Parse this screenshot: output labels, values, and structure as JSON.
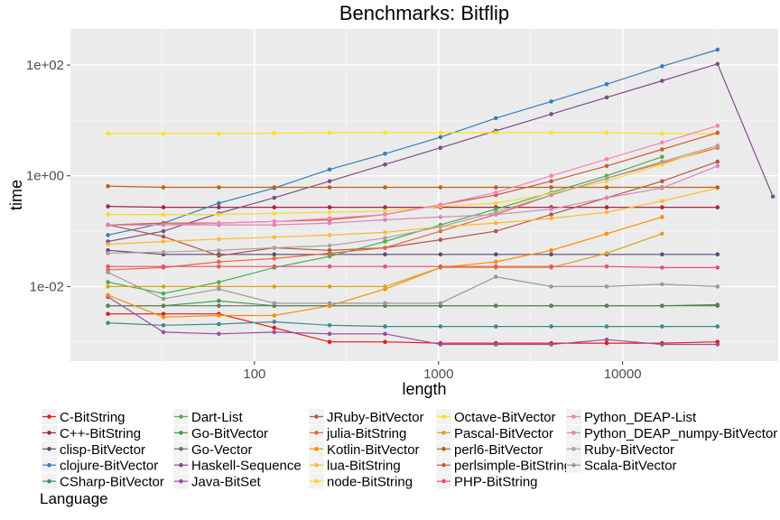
{
  "chart_data": {
    "type": "line",
    "title": "Benchmarks: Bitflip",
    "xlabel": "length",
    "ylabel": "time",
    "x_scale": "log10",
    "y_scale": "log10",
    "xlim": [
      10,
      70000
    ],
    "ylim": [
      0.00045,
      450
    ],
    "x_ticks": [
      100,
      1000,
      10000
    ],
    "x_tick_labels": [
      "100",
      "1000",
      "10000"
    ],
    "y_ticks": [
      0.01,
      1,
      100
    ],
    "y_tick_labels": [
      "1e-02",
      "1e+00",
      "1e+02"
    ],
    "grid": true,
    "legend_title": "Language",
    "legend_position": "bottom",
    "series": [
      {
        "name": "C-BitString",
        "color": "#E41A1C",
        "x": [
          16,
          32,
          64,
          128,
          256,
          512,
          1024,
          2048,
          4096,
          8192,
          16384,
          32768
        ],
        "values": [
          0.0032,
          0.0032,
          0.0032,
          0.0018,
          0.001,
          0.001,
          0.00095,
          0.00095,
          0.00095,
          0.00095,
          0.00095,
          0.001
        ]
      },
      {
        "name": "C++-BitString",
        "color": "#9E2A42",
        "x": [
          16,
          32,
          64,
          128,
          256,
          512,
          1024,
          2048,
          4096,
          8192,
          16384,
          32768
        ],
        "values": [
          0.28,
          0.27,
          0.27,
          0.27,
          0.27,
          0.27,
          0.27,
          0.27,
          0.27,
          0.27,
          0.27,
          0.27
        ]
      },
      {
        "name": "clisp-BitVector",
        "color": "#5E4B73",
        "x": [
          16,
          32,
          64,
          128,
          256,
          512,
          1024,
          2048,
          4096,
          8192,
          16384,
          32768
        ],
        "values": [
          0.045,
          0.038,
          0.038,
          0.038,
          0.038,
          0.038,
          0.038,
          0.038,
          0.038,
          0.038,
          0.038,
          0.038
        ]
      },
      {
        "name": "clojure-BitVector",
        "color": "#377EB8",
        "x": [
          16,
          32,
          64,
          128,
          256,
          512,
          1024,
          2048,
          4096,
          8192,
          16384,
          32768
        ],
        "values": [
          0.085,
          0.14,
          0.32,
          0.6,
          1.3,
          2.5,
          5.0,
          11,
          22,
          45,
          95,
          190
        ]
      },
      {
        "name": "CSharp-BitVector",
        "color": "#3B8C8C",
        "x": [
          16,
          32,
          64,
          128,
          256,
          512,
          1024,
          2048,
          4096,
          8192,
          16384,
          32768
        ],
        "values": [
          0.0022,
          0.002,
          0.0021,
          0.0023,
          0.002,
          0.0019,
          0.0019,
          0.0019,
          0.0019,
          0.0019,
          0.0019,
          0.0019
        ]
      },
      {
        "name": "Dart-List",
        "color": "#4DAF4A",
        "x": [
          16,
          32,
          64,
          128,
          256,
          512,
          1024,
          2048,
          4096,
          8192,
          16384
        ],
        "values": [
          0.012,
          0.0075,
          0.012,
          0.022,
          0.035,
          0.065,
          0.13,
          0.25,
          0.5,
          1.0,
          2.2
        ]
      },
      {
        "name": "Go-BitVector",
        "color": "#3C9A4E",
        "x": [
          16,
          32,
          64,
          128,
          256,
          512,
          1024,
          2048,
          4096,
          8192,
          16384,
          32768
        ],
        "values": [
          0.0045,
          0.0045,
          0.0055,
          0.0045,
          0.0045,
          0.0045,
          0.0045,
          0.0045,
          0.0045,
          0.0045,
          0.0045,
          0.0047
        ]
      },
      {
        "name": "Go-Vector",
        "color": "#62795B",
        "x": [
          16,
          32,
          64,
          128,
          256,
          512,
          1024,
          2048,
          4096,
          8192,
          16384,
          32768
        ],
        "values": [
          0.0045,
          0.0045,
          0.0045,
          0.0045,
          0.0045,
          0.0045,
          0.0045,
          0.0045,
          0.0045,
          0.0045,
          0.0045,
          0.0045
        ]
      },
      {
        "name": "Haskell-Sequence",
        "color": "#7D4E85",
        "x": [
          16,
          32,
          64,
          128,
          256,
          512,
          1024,
          2048,
          4096,
          8192,
          16384,
          32768,
          65536
        ],
        "values": [
          0.065,
          0.1,
          0.21,
          0.4,
          0.8,
          1.6,
          3.2,
          6.5,
          13,
          26,
          52,
          105,
          0.42
        ]
      },
      {
        "name": "Java-BitSet",
        "color": "#984EA3",
        "x": [
          16,
          32,
          64,
          128,
          256,
          512,
          1024,
          2048,
          4096,
          8192,
          16384,
          32768
        ],
        "values": [
          0.0065,
          0.0015,
          0.0014,
          0.0015,
          0.0014,
          0.0014,
          0.0009,
          0.0009,
          0.0009,
          0.0011,
          0.0009,
          0.0009
        ]
      },
      {
        "name": "JRuby-BitVector",
        "color": "#B5574A",
        "x": [
          16,
          32,
          64,
          128,
          256,
          512,
          1024,
          2048,
          4096,
          8192,
          16384,
          32768
        ],
        "values": [
          0.13,
          0.08,
          0.036,
          0.05,
          0.045,
          0.05,
          0.07,
          0.1,
          0.2,
          0.4,
          0.8,
          1.8
        ]
      },
      {
        "name": "julia-BitString",
        "color": "#E76A3A",
        "x": [
          16,
          32,
          64,
          128,
          256,
          512,
          1024,
          2048,
          4096,
          8192,
          16384,
          32768
        ],
        "values": [
          0.02,
          0.022,
          0.028,
          0.032,
          0.04,
          0.05,
          0.1,
          0.2,
          0.45,
          0.9,
          1.7,
          3.2
        ]
      },
      {
        "name": "Kotlin-BitVector",
        "color": "#FF8C00",
        "x": [
          16,
          32,
          64,
          128,
          256,
          512,
          1024,
          2048,
          4096,
          8192,
          16384
        ],
        "values": [
          0.007,
          0.0028,
          0.003,
          0.003,
          0.0045,
          0.009,
          0.022,
          0.028,
          0.045,
          0.09,
          0.18
        ]
      },
      {
        "name": "lua-BitString",
        "color": "#FFB830",
        "x": [
          16,
          32,
          64,
          128,
          256,
          512,
          1024,
          2048,
          4096,
          8192,
          16384,
          32768
        ],
        "values": [
          0.058,
          0.065,
          0.072,
          0.078,
          0.085,
          0.095,
          0.12,
          0.14,
          0.17,
          0.22,
          0.35,
          0.6
        ]
      },
      {
        "name": "node-BitString",
        "color": "#F8D92A",
        "x": [
          16,
          32,
          64,
          128,
          256,
          512,
          1024,
          2048,
          4096,
          8192,
          16384,
          32768
        ],
        "values": [
          0.2,
          0.2,
          0.2,
          0.21,
          0.22,
          0.23,
          0.28,
          0.32,
          0.48,
          0.8,
          1.6,
          3.5
        ]
      },
      {
        "name": "Octave-BitVector",
        "color": "#FFE119",
        "x": [
          16,
          32,
          64,
          128,
          256,
          512,
          1024,
          2048,
          4096,
          8192,
          16384,
          32768
        ],
        "values": [
          5.8,
          5.8,
          5.8,
          5.9,
          6.0,
          6.0,
          6.0,
          6.0,
          6.0,
          6.0,
          5.8,
          5.8
        ]
      },
      {
        "name": "Pascal-BitVector",
        "color": "#D9A322",
        "x": [
          16,
          32,
          64,
          128,
          256,
          512,
          1024,
          2048,
          4096,
          8192,
          16384
        ],
        "values": [
          0.01,
          0.01,
          0.01,
          0.01,
          0.01,
          0.01,
          0.022,
          0.022,
          0.022,
          0.04,
          0.09
        ]
      },
      {
        "name": "perl6-BitVector",
        "color": "#B5651D",
        "x": [
          16,
          32,
          64,
          128,
          256,
          512,
          1024,
          2048,
          4096,
          8192,
          16384,
          32768
        ],
        "values": [
          0.65,
          0.62,
          0.62,
          0.62,
          0.62,
          0.62,
          0.62,
          0.62,
          0.62,
          0.62,
          0.62,
          0.62
        ]
      },
      {
        "name": "perlsimple-BitString",
        "color": "#CD5C3C",
        "x": [
          16,
          32,
          64,
          128,
          256,
          512,
          1024,
          2048,
          4096,
          8192,
          16384,
          32768
        ],
        "values": [
          0.13,
          0.14,
          0.14,
          0.15,
          0.16,
          0.2,
          0.3,
          0.45,
          0.8,
          1.5,
          3.0,
          6.0
        ]
      },
      {
        "name": "PHP-BitString",
        "color": "#E8506E",
        "x": [
          16,
          32,
          64,
          128,
          256,
          512,
          1024,
          2048,
          4096,
          8192,
          16384,
          32768
        ],
        "values": [
          0.023,
          0.023,
          0.023,
          0.023,
          0.023,
          0.023,
          0.023,
          0.023,
          0.023,
          0.023,
          0.022,
          0.022
        ]
      },
      {
        "name": "Python_DEAP-List",
        "color": "#F781BF",
        "x": [
          16,
          32,
          64,
          128,
          256,
          512,
          1024,
          2048,
          4096,
          8192,
          16384,
          32768
        ],
        "values": [
          0.13,
          0.13,
          0.14,
          0.15,
          0.17,
          0.2,
          0.3,
          0.5,
          1.0,
          2.0,
          4.0,
          8.0
        ]
      },
      {
        "name": "Python_DEAP_numpy-BitVector",
        "color": "#D987B6",
        "x": [
          16,
          32,
          64,
          128,
          256,
          512,
          1024,
          2048,
          4096,
          8192,
          16384,
          32768
        ],
        "values": [
          0.13,
          0.13,
          0.13,
          0.13,
          0.14,
          0.16,
          0.18,
          0.2,
          0.25,
          0.4,
          0.6,
          1.5
        ]
      },
      {
        "name": "Ruby-BitVector",
        "color": "#B0A0A0",
        "x": [
          16,
          32,
          64,
          128,
          256,
          512,
          1024,
          2048,
          4096,
          8192,
          16384,
          32768
        ],
        "values": [
          0.04,
          0.042,
          0.045,
          0.05,
          0.055,
          0.075,
          0.12,
          0.22,
          0.45,
          0.9,
          1.8,
          3.5
        ]
      },
      {
        "name": "Scala-BitVector",
        "color": "#999999",
        "x": [
          16,
          32,
          64,
          128,
          256,
          512,
          1024,
          2048,
          4096,
          8192,
          16384,
          32768
        ],
        "values": [
          0.018,
          0.006,
          0.009,
          0.005,
          0.005,
          0.005,
          0.005,
          0.015,
          0.01,
          0.01,
          0.011,
          0.01
        ]
      }
    ]
  }
}
